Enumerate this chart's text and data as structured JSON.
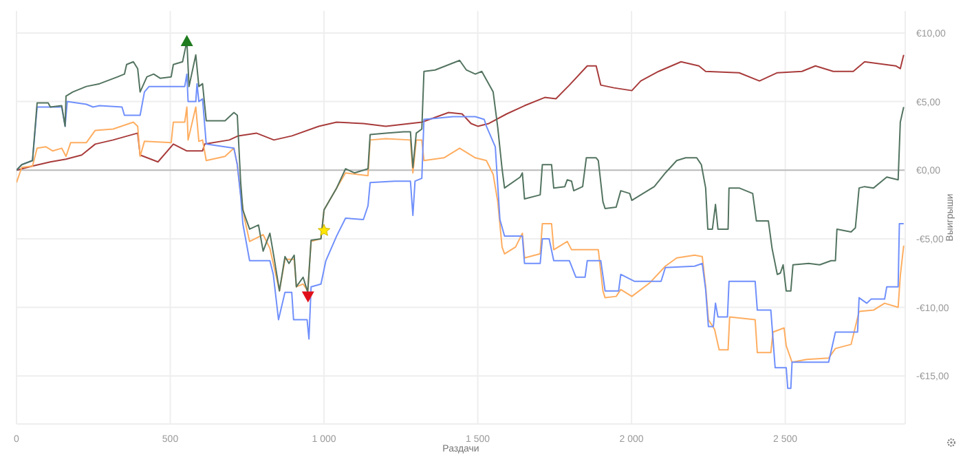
{
  "chart_data": {
    "type": "line",
    "xlabel": "Раздачи",
    "ylabel": "Выигрыши",
    "xlim": [
      0,
      2890
    ],
    "xticks": [
      0,
      500,
      {
        "value": 1000,
        "label": "1 000"
      },
      {
        "value": 1500,
        "label": "1 500"
      },
      {
        "value": 2000,
        "label": "2 000"
      },
      {
        "value": 2500,
        "label": "2 500"
      }
    ],
    "ylim": [
      -18.5,
      11.6
    ],
    "yticks": [
      {
        "value": -15,
        "label": "-€15,00"
      },
      {
        "value": -10,
        "label": "-€10,00"
      },
      {
        "value": -5,
        "label": "-€5,00"
      },
      {
        "value": 0,
        "label": "€0,00"
      },
      {
        "value": 5,
        "label": "€5,00"
      },
      {
        "value": 10,
        "label": "€10,00"
      }
    ],
    "grid": true,
    "marker": "none",
    "line_style": "solid",
    "ref_lines": [
      {
        "axis": "y",
        "value": 0,
        "color": "#bbbbbb"
      }
    ],
    "series": [
      {
        "color": "#a83a3a",
        "x": [
          0,
          52,
          110,
          161,
          212,
          256,
          314,
          394,
          402,
          460,
          510,
          554,
          605,
          612,
          692,
          721,
          780,
          837,
          896,
          983,
          1041,
          1128,
          1201,
          1318,
          1405,
          1449,
          1478,
          1500,
          1536,
          1594,
          1652,
          1718,
          1754,
          1798,
          1856,
          1885,
          1900,
          1943,
          2001,
          2030,
          2088,
          2161,
          2219,
          2241,
          2350,
          2416,
          2474,
          2554,
          2598,
          2656,
          2721,
          2758,
          2859,
          2874,
          2885
        ],
        "values": [
          0,
          0.3,
          0.6,
          0.8,
          1.1,
          1.9,
          2.2,
          2.7,
          1.1,
          0.6,
          1.9,
          1.4,
          1.4,
          1.9,
          2.2,
          2.5,
          2.7,
          2.2,
          2.5,
          3.2,
          3.5,
          3.4,
          3.2,
          3.5,
          4.2,
          4.1,
          3.4,
          3.2,
          3.4,
          4.1,
          4.7,
          5.3,
          5.2,
          6.2,
          7.6,
          7.6,
          6.2,
          6.0,
          5.8,
          6.5,
          7.2,
          7.9,
          7.6,
          7.2,
          7.1,
          6.5,
          7.1,
          7.2,
          7.6,
          7.2,
          7.2,
          7.9,
          7.6,
          7.4,
          8.4
        ]
      },
      {
        "color": "#ffad60",
        "x": [
          0,
          17,
          52,
          67,
          96,
          118,
          147,
          161,
          176,
          227,
          256,
          314,
          380,
          394,
          402,
          416,
          503,
          510,
          547,
          554,
          558,
          583,
          593,
          605,
          617,
          678,
          707,
          718,
          729,
          743,
          758,
          802,
          824,
          837,
          855,
          873,
          903,
          910,
          932,
          947,
          958,
          990,
          1000,
          1041,
          1070,
          1143,
          1150,
          1201,
          1281,
          1289,
          1300,
          1318,
          1325,
          1390,
          1441,
          1492,
          1528,
          1550,
          1565,
          1579,
          1587,
          1623,
          1645,
          1652,
          1703,
          1710,
          1740,
          1747,
          1791,
          1805,
          1841,
          1892,
          1907,
          1914,
          1950,
          1965,
          2001,
          2060,
          2110,
          2147,
          2205,
          2230,
          2241,
          2250,
          2270,
          2285,
          2314,
          2319,
          2402,
          2409,
          2453,
          2460,
          2496,
          2503,
          2522,
          2569,
          2641,
          2663,
          2714,
          2740,
          2787,
          2823,
          2867,
          2874,
          2885
        ],
        "values": [
          -0.9,
          0.2,
          0.3,
          1.6,
          1.7,
          1.4,
          1.6,
          1.0,
          2.0,
          2.0,
          2.9,
          3.0,
          3.5,
          3.2,
          1.0,
          2.1,
          2.0,
          3.5,
          3.5,
          4.6,
          2.2,
          4.6,
          2.1,
          2.2,
          0.7,
          1.0,
          1.6,
          0.4,
          -1.8,
          -3.7,
          -5.2,
          -4.7,
          -5.7,
          -7.0,
          -8.8,
          -6.5,
          -6.5,
          -8.5,
          -8.3,
          -8.8,
          -5.2,
          -5.0,
          -2.9,
          -1.3,
          -0.2,
          -0.4,
          2.2,
          2.3,
          2.2,
          -0.2,
          2.2,
          2.2,
          0.7,
          0.9,
          1.6,
          0.9,
          0.7,
          -0.3,
          -2.3,
          -5.6,
          -6.1,
          -5.6,
          -4.6,
          -6.4,
          -6.1,
          -3.9,
          -3.9,
          -5.8,
          -5.2,
          -5.8,
          -5.8,
          -5.8,
          -8.8,
          -9.3,
          -9.2,
          -8.7,
          -9.2,
          -8.2,
          -7.0,
          -6.4,
          -6.2,
          -6.3,
          -8.5,
          -10.9,
          -11.6,
          -13.1,
          -13.1,
          -10.7,
          -10.9,
          -13.3,
          -13.3,
          -11.8,
          -11.5,
          -12.8,
          -14.0,
          -13.8,
          -13.7,
          -13.0,
          -12.7,
          -10.3,
          -10.2,
          -9.7,
          -10.0,
          -7.7,
          -5.5
        ]
      },
      {
        "color": "#6f8ffc",
        "x": [
          0,
          17,
          52,
          67,
          147,
          158,
          165,
          227,
          249,
          270,
          343,
          351,
          402,
          416,
          431,
          547,
          554,
          558,
          583,
          587,
          593,
          605,
          617,
          707,
          718,
          729,
          736,
          758,
          824,
          835,
          852,
          873,
          895,
          901,
          945,
          951,
          958,
          990,
          1006,
          1041,
          1070,
          1128,
          1143,
          1150,
          1230,
          1281,
          1289,
          1296,
          1318,
          1325,
          1419,
          1492,
          1521,
          1528,
          1557,
          1572,
          1587,
          1645,
          1652,
          1703,
          1710,
          1732,
          1747,
          1798,
          1819,
          1849,
          1856,
          1900,
          1914,
          1958,
          1965,
          2009,
          2096,
          2110,
          2205,
          2230,
          2241,
          2250,
          2266,
          2273,
          2281,
          2312,
          2317,
          2402,
          2409,
          2453,
          2460,
          2467,
          2503,
          2508,
          2518,
          2522,
          2641,
          2663,
          2735,
          2740,
          2765,
          2779,
          2823,
          2830,
          2867,
          2871,
          2885
        ],
        "values": [
          0,
          0.4,
          0.7,
          4.6,
          4.6,
          3.2,
          5.0,
          4.8,
          4.6,
          4.7,
          4.6,
          4.0,
          4.0,
          5.7,
          6.1,
          6.1,
          7.0,
          5.0,
          5.0,
          6.3,
          5.0,
          5.2,
          1.9,
          1.6,
          0.4,
          -1.9,
          -3.9,
          -6.6,
          -6.6,
          -7.6,
          -10.9,
          -8.9,
          -8.9,
          -10.9,
          -10.9,
          -12.3,
          -8.5,
          -8.3,
          -6.6,
          -4.8,
          -3.5,
          -3.6,
          -2.6,
          -0.9,
          -0.8,
          -0.8,
          -3.3,
          -0.8,
          -0.6,
          3.7,
          3.9,
          3.9,
          3.7,
          3.2,
          1.7,
          -3.6,
          -4.8,
          -4.8,
          -6.8,
          -6.8,
          -5.0,
          -5.0,
          -6.6,
          -6.6,
          -7.8,
          -7.8,
          -6.6,
          -6.6,
          -8.8,
          -8.8,
          -7.6,
          -8.1,
          -8.1,
          -7.1,
          -7.0,
          -6.8,
          -8.7,
          -11.4,
          -11.4,
          -9.7,
          -10.7,
          -10.7,
          -8.1,
          -8.1,
          -10.2,
          -10.2,
          -12.3,
          -14.4,
          -14.4,
          -15.9,
          -15.9,
          -14.0,
          -14.0,
          -11.8,
          -11.8,
          -9.3,
          -9.7,
          -9.4,
          -9.4,
          -8.5,
          -8.5,
          -3.9,
          -3.9
        ]
      },
      {
        "color": "#52735f",
        "x": [
          0,
          17,
          52,
          67,
          103,
          110,
          147,
          158,
          161,
          183,
          227,
          270,
          329,
          351,
          358,
          380,
          394,
          402,
          424,
          446,
          467,
          503,
          510,
          540,
          554,
          561,
          583,
          593,
          605,
          617,
          678,
          707,
          718,
          729,
          736,
          758,
          787,
          802,
          824,
          837,
          855,
          873,
          886,
          903,
          910,
          932,
          947,
          958,
          990,
          1000,
          1041,
          1070,
          1099,
          1143,
          1150,
          1201,
          1259,
          1281,
          1289,
          1300,
          1318,
          1325,
          1361,
          1441,
          1463,
          1492,
          1513,
          1550,
          1565,
          1579,
          1587,
          1638,
          1645,
          1652,
          1703,
          1710,
          1740,
          1747,
          1783,
          1791,
          1805,
          1812,
          1841,
          1853,
          1885,
          1892,
          1907,
          1914,
          1950,
          1965,
          1994,
          2001,
          2030,
          2074,
          2110,
          2147,
          2176,
          2212,
          2227,
          2241,
          2248,
          2263,
          2273,
          2281,
          2314,
          2317,
          2350,
          2394,
          2406,
          2445,
          2457,
          2474,
          2484,
          2493,
          2503,
          2518,
          2525,
          2576,
          2612,
          2649,
          2663,
          2668,
          2714,
          2728,
          2740,
          2758,
          2787,
          2830,
          2867,
          2871,
          2874,
          2885
        ],
        "values": [
          0,
          0.4,
          0.7,
          4.9,
          4.9,
          4.6,
          4.7,
          3.2,
          5.4,
          5.7,
          6.1,
          6.3,
          6.8,
          7.0,
          7.7,
          7.9,
          7.4,
          5.7,
          6.8,
          7.0,
          6.7,
          6.8,
          7.7,
          7.9,
          9.4,
          6.1,
          8.4,
          6.1,
          6.3,
          3.6,
          3.6,
          4.2,
          4.0,
          -0.9,
          -2.9,
          -4.3,
          -4.0,
          -5.9,
          -4.6,
          -6.3,
          -8.8,
          -6.3,
          -6.8,
          -6.2,
          -8.5,
          -7.8,
          -8.9,
          -5.1,
          -5.0,
          -2.9,
          -1.3,
          0.1,
          -0.2,
          0.1,
          2.6,
          2.7,
          2.8,
          2.8,
          0.2,
          2.7,
          3.0,
          7.2,
          7.3,
          8.0,
          7.3,
          7.0,
          7.2,
          5.7,
          3.1,
          0.1,
          -1.3,
          -0.5,
          -0.2,
          -2.1,
          -1.8,
          0.4,
          0.4,
          -1.3,
          -1.2,
          -0.7,
          -0.8,
          -1.5,
          -1.2,
          0.9,
          0.9,
          0.7,
          -2.3,
          -2.8,
          -2.7,
          -1.5,
          -1.7,
          -2.2,
          -1.8,
          -1.2,
          -0.2,
          0.7,
          0.9,
          0.9,
          0.4,
          -1.3,
          -4.3,
          -4.3,
          -2.5,
          -4.3,
          -4.3,
          -1.3,
          -1.3,
          -1.7,
          -3.7,
          -3.7,
          -5.7,
          -7.6,
          -7.5,
          -6.9,
          -8.8,
          -8.8,
          -6.9,
          -6.8,
          -6.9,
          -6.6,
          -6.6,
          -4.3,
          -4.5,
          -4.2,
          -1.3,
          -1.2,
          -1.3,
          -0.5,
          -0.7,
          1.7,
          3.5,
          4.6
        ]
      },
      {
        "type": "scatter",
        "marker": "triangle",
        "color": "#1e7b1e",
        "x": [
          554
        ],
        "values": [
          9.4
        ]
      },
      {
        "type": "scatter",
        "marker": "triangle-down",
        "color": "#e0101a",
        "x": [
          948
        ],
        "values": [
          -9.2
        ]
      },
      {
        "type": "scatter",
        "marker": "star",
        "color": "#ffe600",
        "x": [
          1000
        ],
        "values": [
          -4.4
        ]
      }
    ]
  }
}
